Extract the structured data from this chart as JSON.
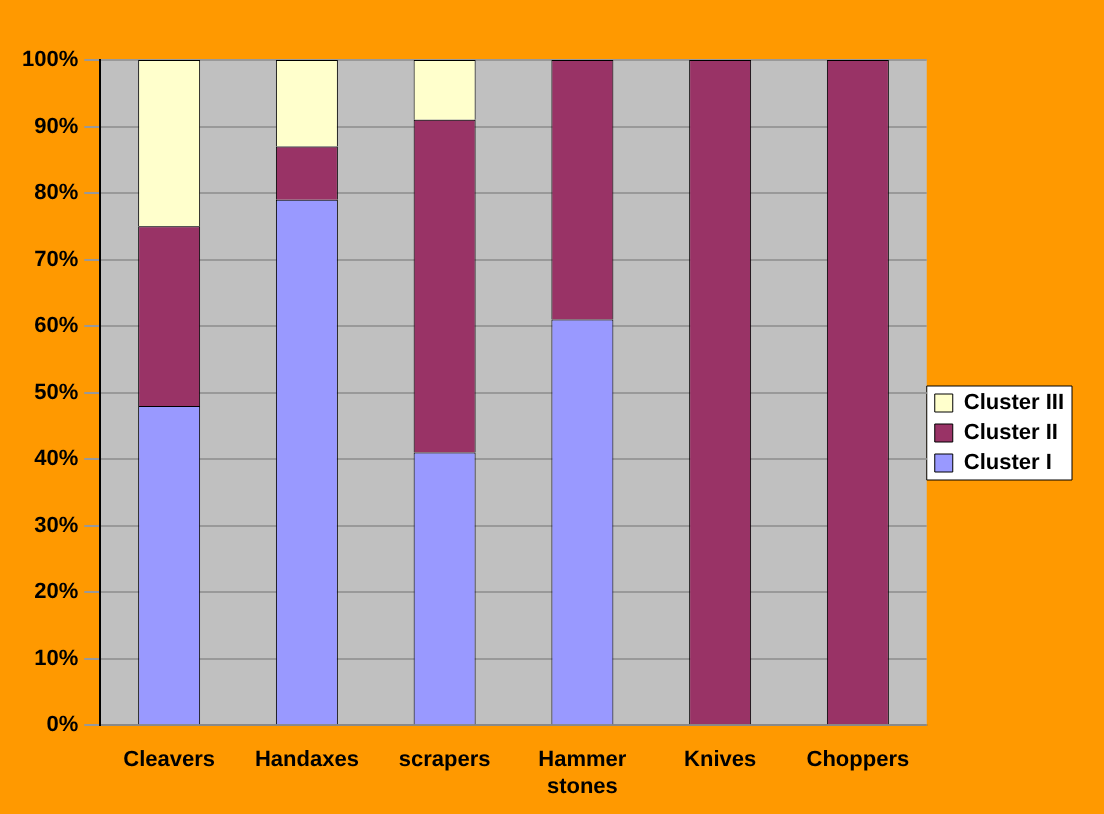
{
  "chart_data": {
    "type": "bar",
    "stacked": true,
    "categories": [
      "Cleavers",
      "Handaxes",
      "scrapers",
      "Hammer stones",
      "Knives",
      "Choppers"
    ],
    "series": [
      {
        "name": "Cluster I",
        "color": "#9999ff",
        "values": [
          48,
          79,
          41,
          61,
          0,
          0
        ]
      },
      {
        "name": "Cluster II",
        "color": "#993366",
        "values": [
          27,
          8,
          50,
          39,
          100,
          100
        ]
      },
      {
        "name": "Cluster III",
        "color": "#ffffcc",
        "values": [
          25,
          13,
          9,
          0,
          0,
          0
        ]
      }
    ],
    "ylim": [
      0,
      100
    ],
    "yticks": [
      {
        "value": 0,
        "label": "0%"
      },
      {
        "value": 10,
        "label": "10%"
      },
      {
        "value": 20,
        "label": "20%"
      },
      {
        "value": 30,
        "label": "30%"
      },
      {
        "value": 40,
        "label": "40%"
      },
      {
        "value": 50,
        "label": "50%"
      },
      {
        "value": 60,
        "label": "60%"
      },
      {
        "value": 70,
        "label": "70%"
      },
      {
        "value": 80,
        "label": "80%"
      },
      {
        "value": 90,
        "label": "90%"
      },
      {
        "value": 100,
        "label": "100%"
      }
    ],
    "grid": "y",
    "legend": "right"
  }
}
